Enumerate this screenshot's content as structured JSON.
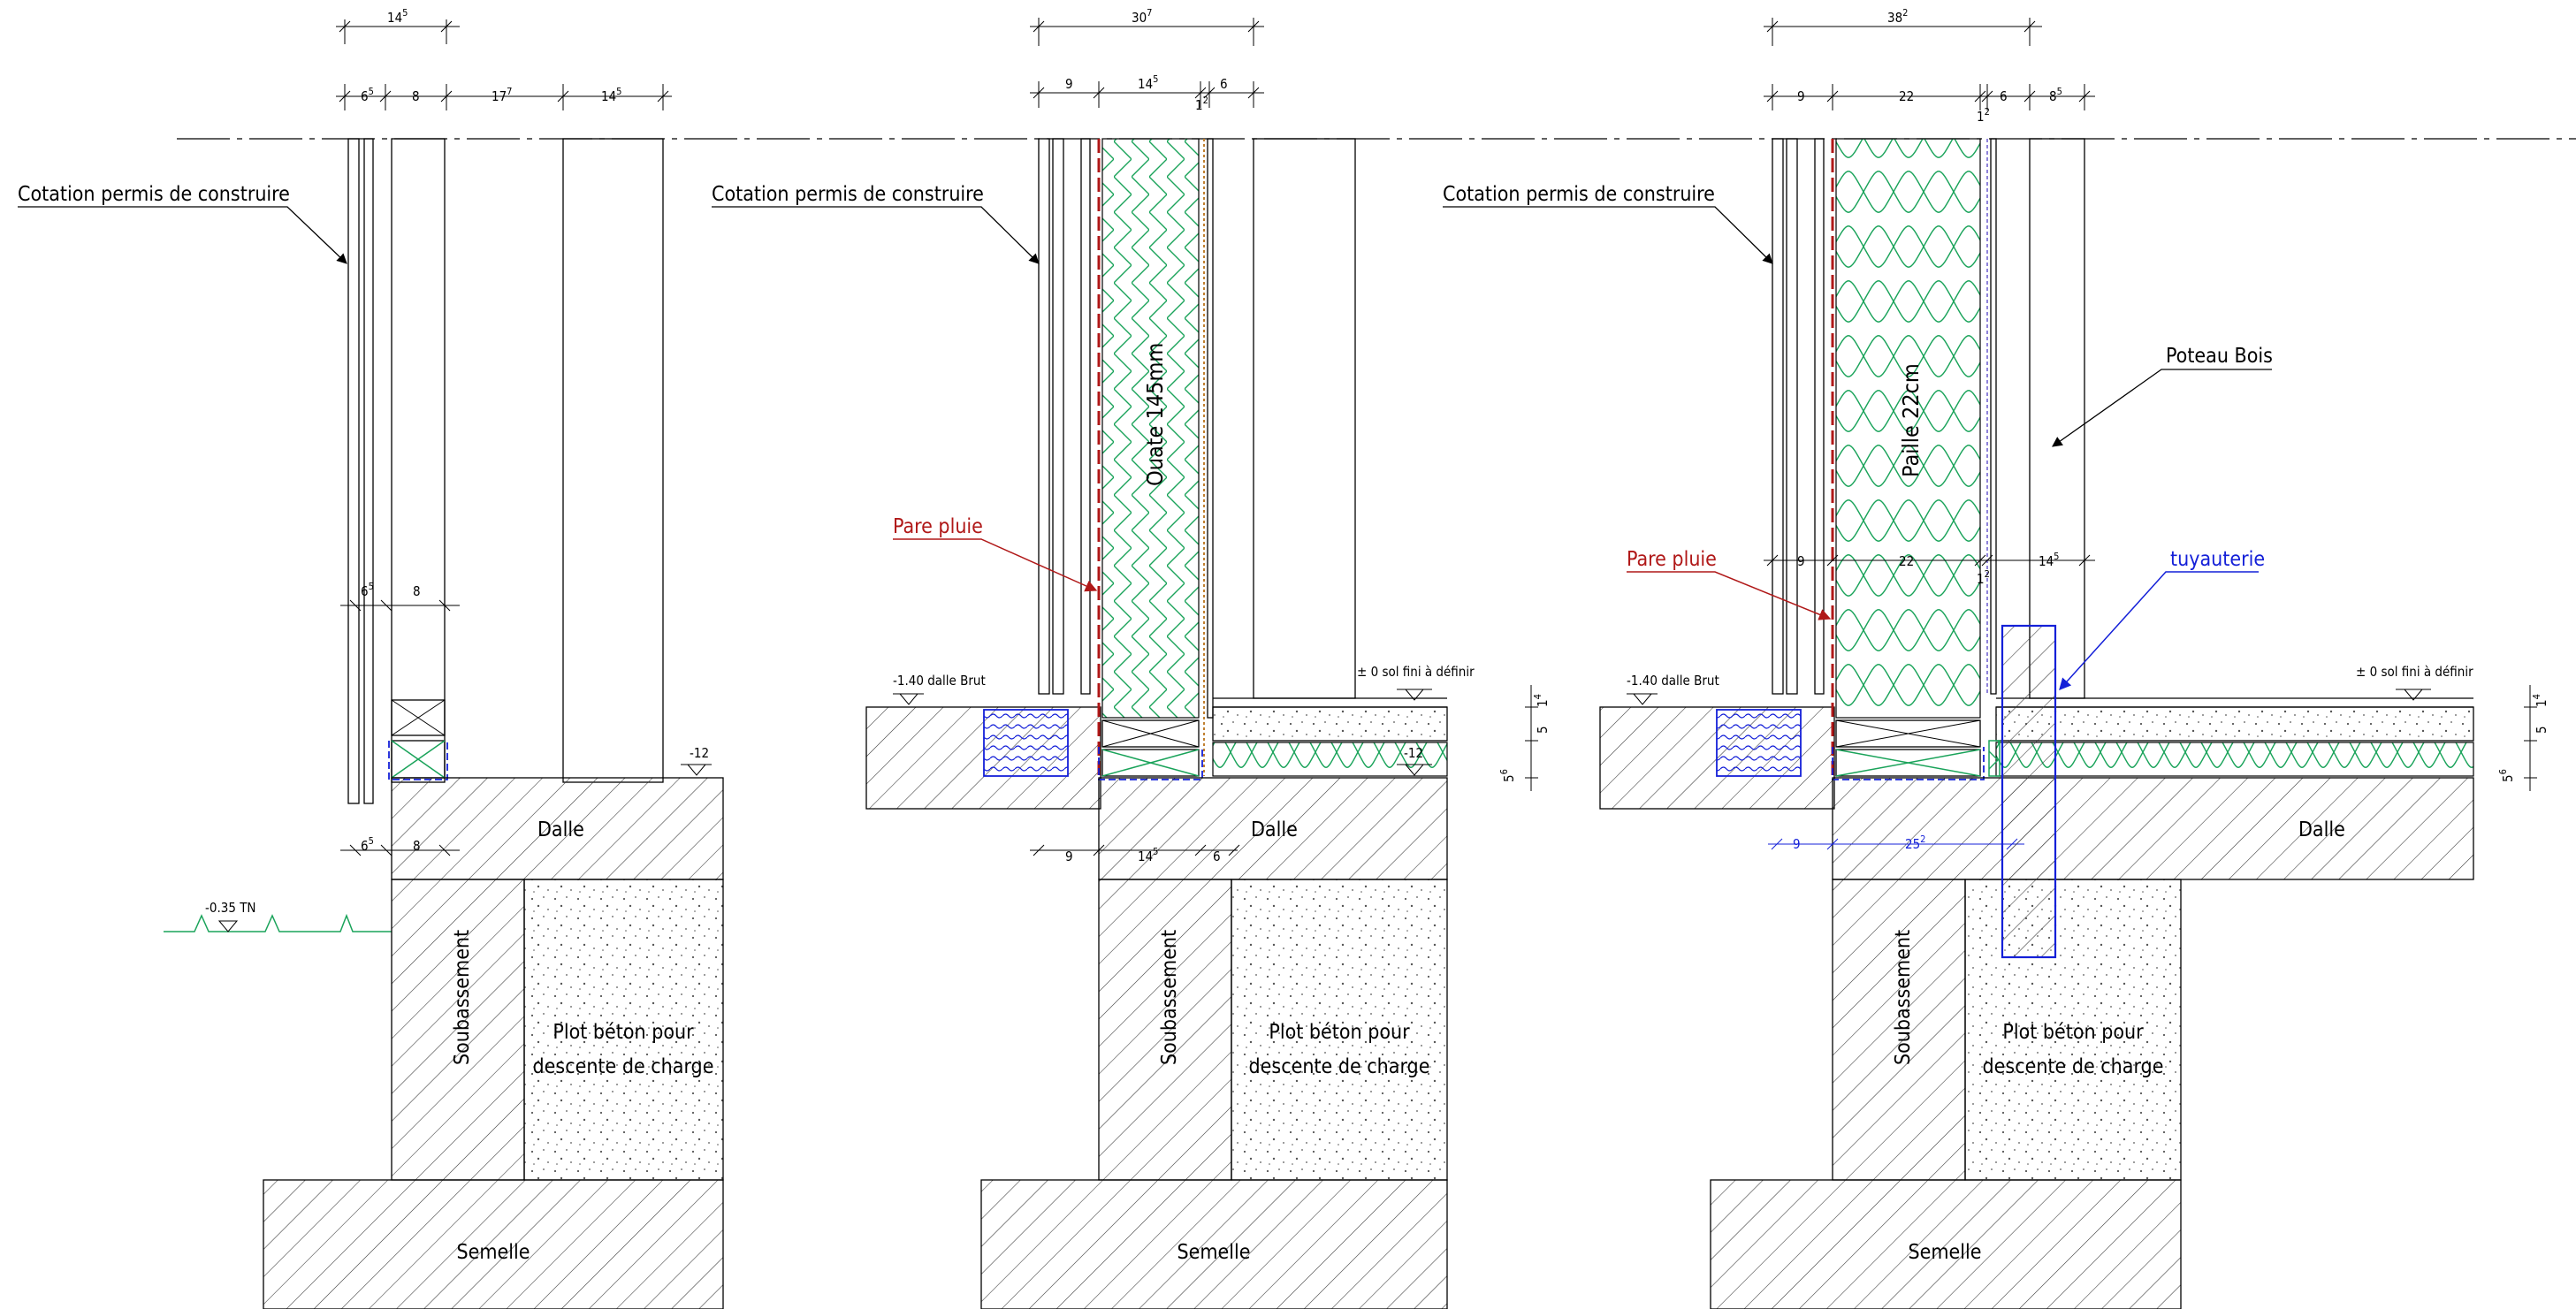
{
  "colors": {
    "line": "#000000",
    "insulation": "#1aa35a",
    "rain_barrier": "#b01818",
    "pipe": "#1420d8"
  },
  "sections": [
    {
      "dims_top": {
        "total": "14",
        "total_sup": "5",
        "d1": "6",
        "d1_sup": "5",
        "d2": "8",
        "d3": "17",
        "d3_sup": "7",
        "d4": "14",
        "d4_sup": "5"
      },
      "dims_mid": {
        "d1": "6",
        "d1_sup": "5",
        "d2": "8"
      },
      "dims_low": {
        "d1": "6",
        "d1_sup": "5",
        "d2": "8"
      },
      "callout": "Cotation permis de construire",
      "level_floor": "-12",
      "level_ground": "-0.35 TN",
      "slab": "Dalle",
      "base_wall": "Soubassement",
      "pier_line1": "Plot béton pour",
      "pier_line2": "descente de charge",
      "footing": "Semelle"
    },
    {
      "dims_top": {
        "total": "30",
        "total_sup": "7",
        "d1": "9",
        "d2": "14",
        "d2_sup": "5",
        "d3": "1",
        "d3_sup": "2",
        "d4": "6"
      },
      "dims_low": {
        "d1": "9",
        "d2": "14",
        "d2_sup": "5",
        "d3": "6"
      },
      "callout": "Cotation permis de construire",
      "insulation": "Ouate 145mm",
      "rain_barrier": "Pare pluie",
      "level_raw": "-1.40 dalle Brut",
      "level_finish": "± 0 sol fini à définir",
      "level_floor": "-12",
      "side_dims": {
        "a": "5",
        "a_sup": "6",
        "b": "5",
        "c": "1",
        "c_sup": "4"
      },
      "slab": "Dalle",
      "base_wall": "Soubassement",
      "pier_line1": "Plot béton pour",
      "pier_line2": "descente de charge",
      "footing": "Semelle"
    },
    {
      "dims_top": {
        "total": "38",
        "total_sup": "2",
        "d1": "9",
        "d2": "22",
        "d3": "1",
        "d3_sup": "2",
        "d4": "6",
        "d5": "8",
        "d5_sup": "5"
      },
      "dims_mid": {
        "d1": "9",
        "d2": "22",
        "d3": "1",
        "d3_sup": "2",
        "d4": "14",
        "d4_sup": "5"
      },
      "dims_low": {
        "d1": "9",
        "d2": "25",
        "d2_sup": "2"
      },
      "callout": "Cotation permis de construire",
      "insulation": "Paille 22cm",
      "rain_barrier": "Pare pluie",
      "post": "Poteau Bois",
      "pipe": "tuyauterie",
      "level_raw": "-1.40 dalle Brut",
      "level_finish": "± 0 sol fini à définir",
      "side_dims": {
        "a": "5",
        "a_sup": "6",
        "b": "5",
        "c": "1",
        "c_sup": "4"
      },
      "slab": "Dalle",
      "base_wall": "Soubassement",
      "pier_line1": "Plot béton pour",
      "pier_line2": "descente de charge",
      "footing": "Semelle"
    }
  ]
}
